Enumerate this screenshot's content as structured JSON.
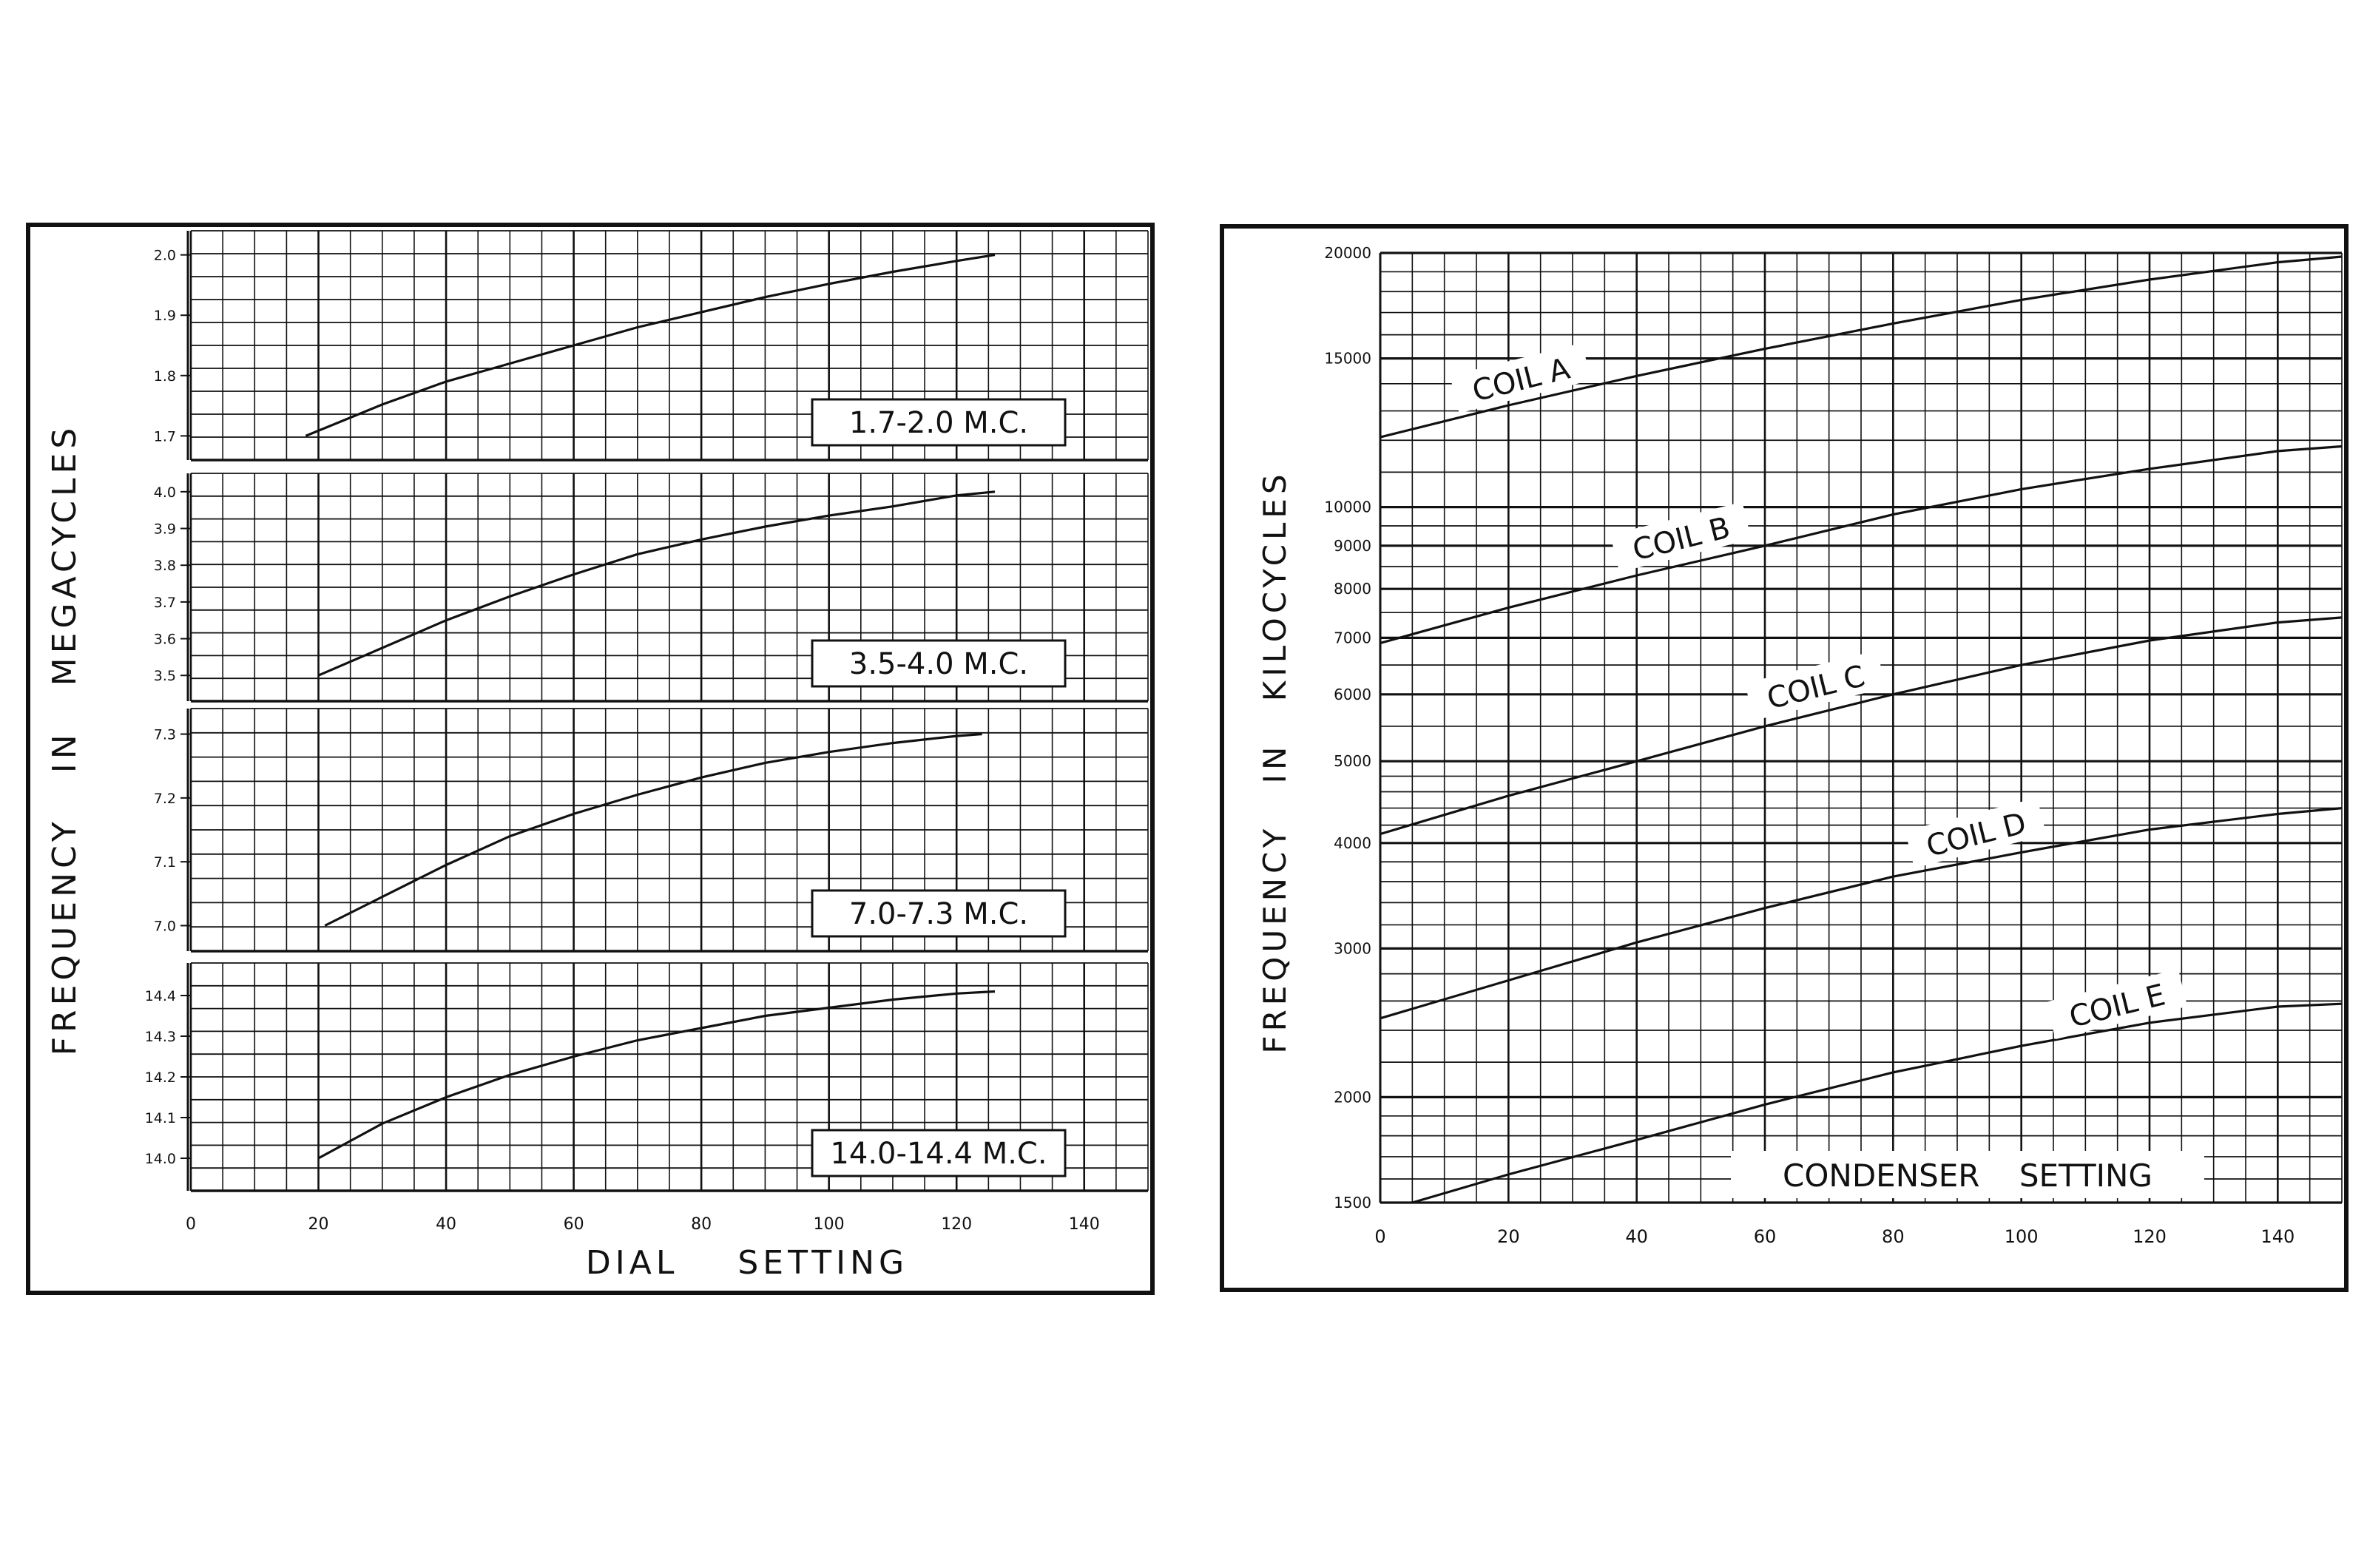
{
  "chart_data": [
    {
      "type": "line",
      "title": "",
      "xlabel": "DIAL SETTING",
      "ylabel": "FREQUENCY IN MEGACYCLES",
      "xlim": [
        0,
        150
      ],
      "x_ticks": [
        "0",
        "20",
        "40",
        "60",
        "80",
        "100",
        "120",
        "140"
      ],
      "grid": true,
      "panels": [
        {
          "label": "1.7-2.0 M.C.",
          "ylim": [
            1.66,
            2.04
          ],
          "y_ticks": [
            "2.0",
            "1.9",
            "1.8",
            "1.7"
          ],
          "x": [
            18,
            30,
            40,
            50,
            60,
            70,
            80,
            90,
            100,
            110,
            120,
            126
          ],
          "y": [
            1.7,
            1.752,
            1.79,
            1.82,
            1.85,
            1.88,
            1.905,
            1.93,
            1.952,
            1.972,
            1.99,
            2.0
          ]
        },
        {
          "label": "3.5-4.0 M.C.",
          "ylim": [
            3.43,
            4.05
          ],
          "y_ticks": [
            "4.0",
            "3.9",
            "3.8",
            "3.7",
            "3.6",
            "3.5"
          ],
          "x": [
            20,
            30,
            40,
            50,
            60,
            70,
            80,
            90,
            100,
            110,
            120,
            126
          ],
          "y": [
            3.5,
            3.575,
            3.65,
            3.715,
            3.775,
            3.83,
            3.87,
            3.905,
            3.935,
            3.96,
            3.99,
            4.0
          ]
        },
        {
          "label": "7.0-7.3 M.C.",
          "ylim": [
            6.96,
            7.34
          ],
          "y_ticks": [
            "7.3",
            "7.2",
            "7.1",
            "7.0"
          ],
          "x": [
            21,
            30,
            40,
            50,
            60,
            70,
            80,
            90,
            100,
            110,
            120,
            124
          ],
          "y": [
            7.0,
            7.045,
            7.095,
            7.14,
            7.175,
            7.205,
            7.232,
            7.255,
            7.272,
            7.286,
            7.297,
            7.3
          ]
        },
        {
          "label": "14.0-14.4 M.C.",
          "ylim": [
            13.92,
            14.48
          ],
          "y_ticks": [
            "14.4",
            "14.3",
            "14.2",
            "14.1",
            "14.0"
          ],
          "x": [
            20,
            30,
            40,
            50,
            60,
            70,
            80,
            90,
            100,
            110,
            120,
            126
          ],
          "y": [
            14.0,
            14.085,
            14.15,
            14.205,
            14.25,
            14.29,
            14.32,
            14.35,
            14.37,
            14.39,
            14.405,
            14.41
          ]
        }
      ]
    },
    {
      "type": "line",
      "title": "",
      "xlabel": "CONDENSER SETTING",
      "ylabel": "FREQUENCY IN KILOCYCLES",
      "xlim": [
        0,
        150
      ],
      "ylim": [
        1500,
        20000
      ],
      "y_scale": "log",
      "x_ticks": [
        "0",
        "20",
        "40",
        "60",
        "80",
        "100",
        "120",
        "140"
      ],
      "y_ticks": [
        {
          "value": 20000,
          "label": "20000"
        },
        {
          "value": 15000,
          "label": "15000"
        },
        {
          "value": 10000,
          "label": "10000"
        },
        {
          "value": 9000,
          "label": "9000"
        },
        {
          "value": 8000,
          "label": "8000"
        },
        {
          "value": 7000,
          "label": "7000"
        },
        {
          "value": 6000,
          "label": "6000"
        },
        {
          "value": 5000,
          "label": "5000"
        },
        {
          "value": 4000,
          "label": "4000"
        },
        {
          "value": 3000,
          "label": "3000"
        },
        {
          "value": 2000,
          "label": "2000"
        },
        {
          "value": 1500,
          "label": "1500"
        }
      ],
      "grid": true,
      "series": [
        {
          "name": "COIL A",
          "x": [
            0,
            20,
            40,
            60,
            80,
            100,
            120,
            140,
            150
          ],
          "y": [
            12100,
            13200,
            14300,
            15400,
            16500,
            17600,
            18600,
            19500,
            19800
          ]
        },
        {
          "name": "COIL B",
          "x": [
            0,
            20,
            40,
            60,
            80,
            100,
            120,
            140,
            150
          ],
          "y": [
            6900,
            7600,
            8300,
            9000,
            9800,
            10500,
            11100,
            11650,
            11800
          ]
        },
        {
          "name": "COIL C",
          "x": [
            0,
            20,
            40,
            60,
            80,
            100,
            120,
            140,
            150
          ],
          "y": [
            4100,
            4550,
            5000,
            5500,
            6000,
            6500,
            6950,
            7300,
            7400
          ]
        },
        {
          "name": "COIL D",
          "x": [
            0,
            20,
            40,
            60,
            80,
            100,
            120,
            140,
            150
          ],
          "y": [
            2480,
            2750,
            3050,
            3350,
            3650,
            3900,
            4150,
            4330,
            4400
          ]
        },
        {
          "name": "COIL E",
          "x": [
            5,
            20,
            40,
            60,
            80,
            100,
            120,
            140,
            150
          ],
          "y": [
            1500,
            1620,
            1780,
            1960,
            2140,
            2300,
            2450,
            2560,
            2580
          ]
        }
      ]
    }
  ]
}
